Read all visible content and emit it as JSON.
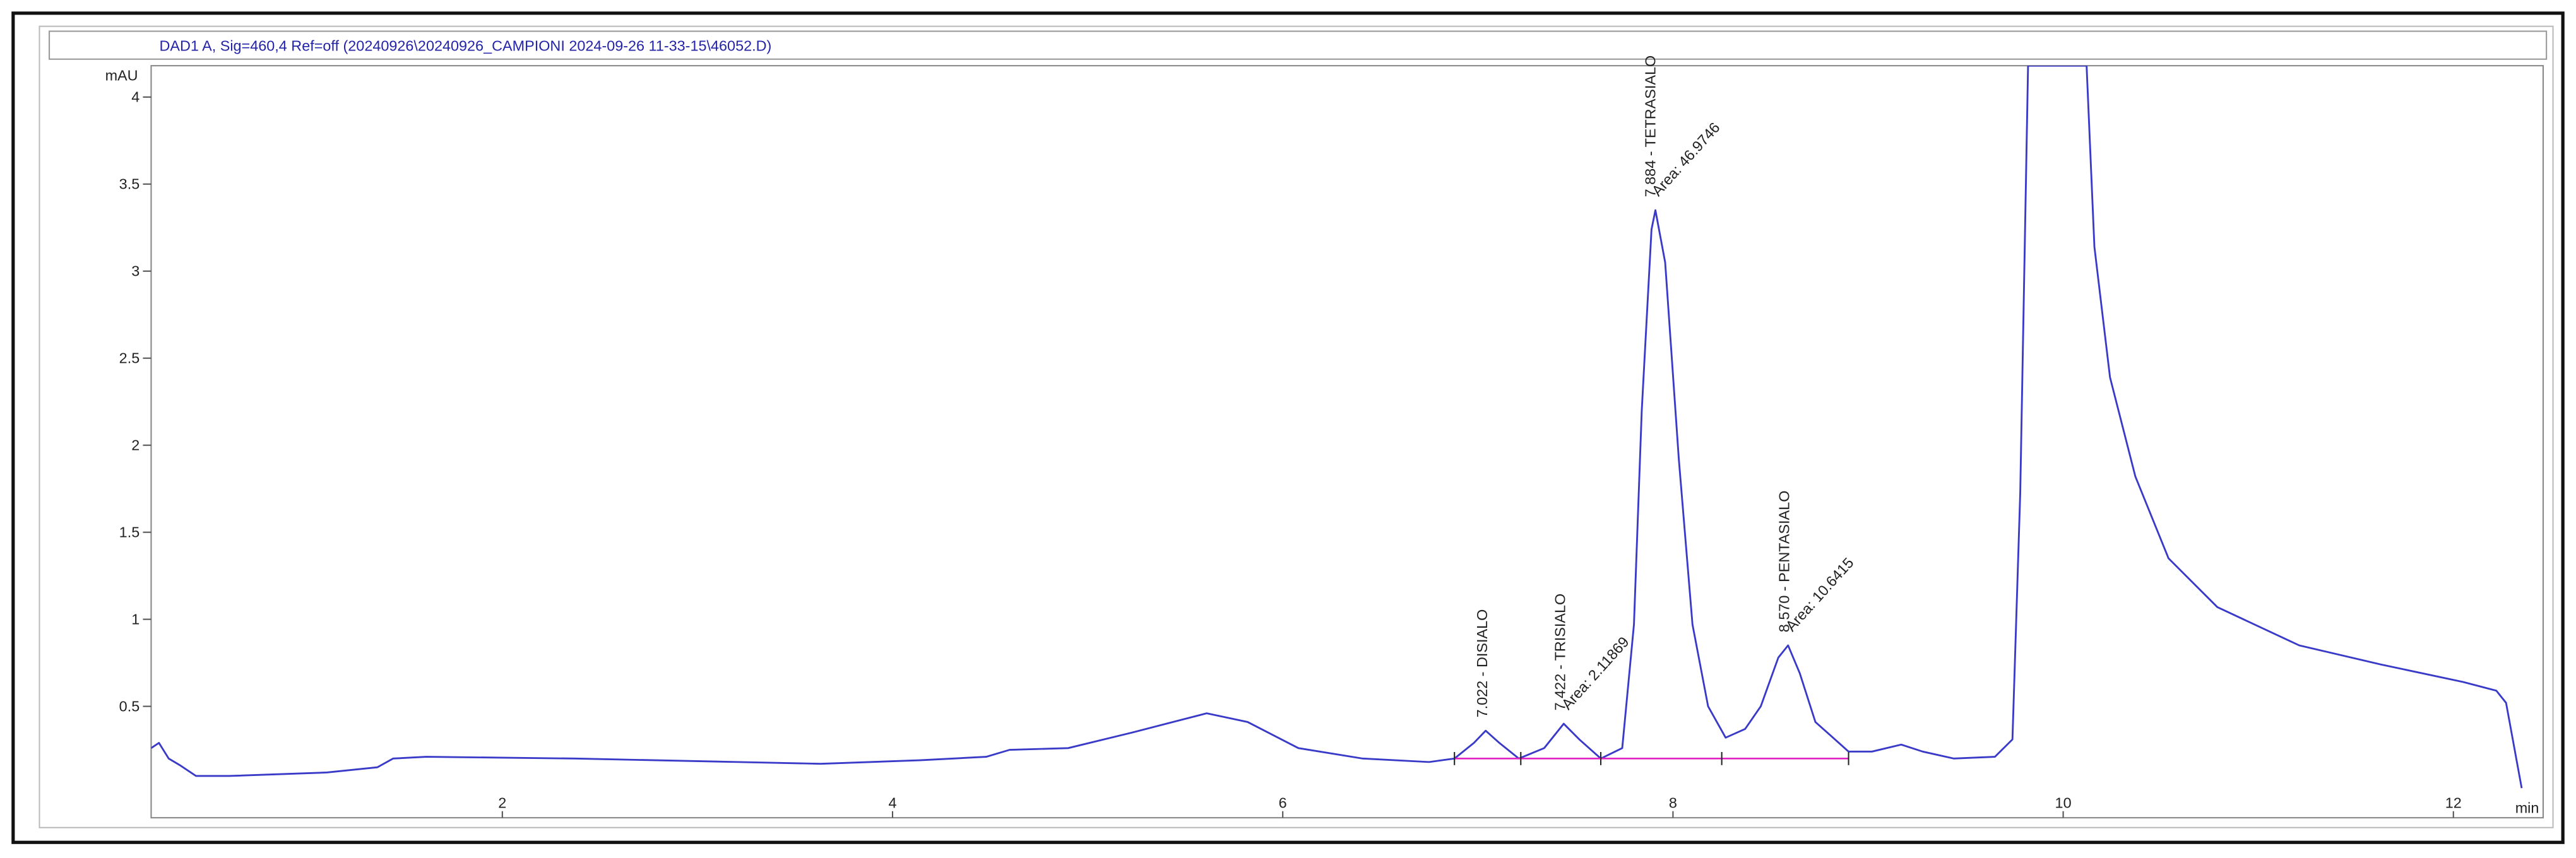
{
  "chart_data": {
    "type": "line",
    "title": "DAD1 A, Sig=460,4 Ref=off (20240926\\20240926_CAMPIONI 2024-09-26 11-33-15\\46052.D)",
    "y_label": "mAU",
    "x_label": "min",
    "xlim": [
      0.2,
      12.46
    ],
    "ylim": [
      -0.14,
      4.18
    ],
    "xticks": [
      2,
      4,
      6,
      8,
      10,
      12
    ],
    "yticks": [
      0.5,
      1,
      1.5,
      2,
      2.5,
      3,
      3.5,
      4
    ],
    "series": [
      {
        "name": "DAD1 A",
        "color": "#3a3ac8",
        "x": [
          0.2,
          0.24,
          0.29,
          0.35,
          0.43,
          0.6,
          1.1,
          1.36,
          1.44,
          1.61,
          2.37,
          3.21,
          3.63,
          4.14,
          4.48,
          4.6,
          4.9,
          5.23,
          5.61,
          5.82,
          6.08,
          6.41,
          6.75,
          6.88,
          6.98,
          7.04,
          7.11,
          7.21,
          7.34,
          7.44,
          7.52,
          7.63,
          7.74,
          7.8,
          7.84,
          7.89,
          7.91,
          7.96,
          8.03,
          8.1,
          8.18,
          8.27,
          8.37,
          8.45,
          8.54,
          8.59,
          8.65,
          8.73,
          8.81,
          8.9,
          9.02,
          9.17,
          9.28,
          9.44,
          9.65,
          9.74,
          9.78,
          9.82,
          10.12,
          10.16,
          10.24,
          10.37,
          10.54,
          10.79,
          11.21,
          11.63,
          12.05,
          12.22,
          12.27,
          12.35
        ],
        "values": [
          0.26,
          0.29,
          0.2,
          0.16,
          0.1,
          0.1,
          0.12,
          0.15,
          0.2,
          0.21,
          0.2,
          0.18,
          0.17,
          0.19,
          0.21,
          0.25,
          0.26,
          0.35,
          0.46,
          0.41,
          0.26,
          0.2,
          0.18,
          0.2,
          0.29,
          0.36,
          0.29,
          0.2,
          0.26,
          0.4,
          0.31,
          0.2,
          0.26,
          0.97,
          2.2,
          3.24,
          3.35,
          3.05,
          1.92,
          0.97,
          0.5,
          0.32,
          0.37,
          0.5,
          0.78,
          0.85,
          0.69,
          0.41,
          0.33,
          0.24,
          0.24,
          0.28,
          0.24,
          0.2,
          0.21,
          0.31,
          1.73,
          4.18,
          4.18,
          3.14,
          2.39,
          1.82,
          1.35,
          1.07,
          0.85,
          0.74,
          0.64,
          0.59,
          0.52,
          0.03
        ]
      }
    ],
    "baseline": {
      "color": "#e020c0",
      "x": [
        6.88,
        7.22,
        7.63,
        8.25,
        8.9
      ],
      "values": [
        0.2,
        0.2,
        0.2,
        0.2,
        0.2
      ]
    },
    "peaks": [
      {
        "label": "7.022 -  DISIALO",
        "x": 7.022,
        "y": 0.36
      },
      {
        "label": "7.422 -  TRISIALO",
        "area_label": "Area: 2.11869",
        "x": 7.422,
        "y": 0.4
      },
      {
        "label": "7.884 -  TETRASIALO",
        "area_label": "Area: 46.9746",
        "x": 7.884,
        "y": 3.35
      },
      {
        "label": "8.570 -  PENTASIALO",
        "area_label": "Area: 10.6415",
        "x": 8.57,
        "y": 0.85
      }
    ]
  }
}
